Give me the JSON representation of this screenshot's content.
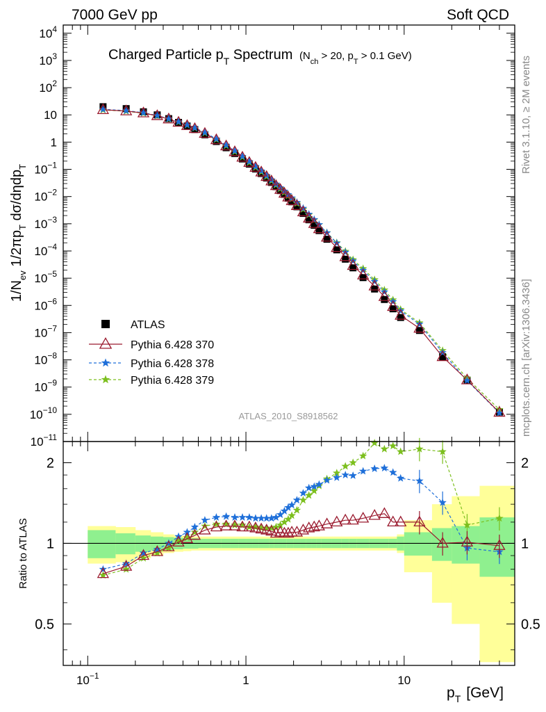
{
  "header": {
    "left": "7000 GeV pp",
    "right": "Soft QCD"
  },
  "side_labels": {
    "rivet": "Rivet 3.1.10, ≥ 2M events",
    "mcplots": "mcplots.cern.ch [arXiv:1306.3436]"
  },
  "chart_data": [
    {
      "type": "scatter",
      "title": "Charged Particle p_T Spectrum",
      "subtitle": "(N_ch > 20, p_T > 0.1 GeV)",
      "ylabel": "1/N_ev 1/2πp_T dσ/dηdp_T",
      "analysis_label": "ATLAS_2010_S8918562",
      "x_scale": "log",
      "y_scale": "log",
      "xlim": [
        0.07,
        50
      ],
      "ylim": [
        1e-11,
        20000
      ],
      "ytick_labels": [
        "10^-11",
        "10^-10",
        "10^-9",
        "10^-8",
        "10^-7",
        "10^-6",
        "10^-5",
        "10^-4",
        "10^-3",
        "10^-2",
        "10^-1",
        "1",
        "10",
        "10^2",
        "10^3",
        "10^4"
      ],
      "legend_position": "lower-left",
      "x": [
        0.125,
        0.175,
        0.225,
        0.275,
        0.325,
        0.375,
        0.425,
        0.475,
        0.55,
        0.65,
        0.75,
        0.85,
        0.95,
        1.05,
        1.15,
        1.25,
        1.35,
        1.45,
        1.55,
        1.65,
        1.75,
        1.85,
        1.95,
        2.1,
        2.3,
        2.5,
        2.7,
        2.9,
        3.25,
        3.75,
        4.25,
        4.75,
        5.5,
        6.5,
        7.5,
        8.5,
        9.5,
        12.5,
        17.5,
        25,
        40
      ],
      "series": [
        {
          "name": "ATLAS",
          "color": "#000000",
          "marker": "square",
          "values": [
            20,
            17,
            13,
            10,
            7.3,
            5.3,
            3.9,
            2.9,
            1.85,
            1.05,
            0.62,
            0.38,
            0.24,
            0.155,
            0.103,
            0.07,
            0.048,
            0.033,
            0.023,
            0.0165,
            0.012,
            0.0087,
            0.0064,
            0.0042,
            0.0024,
            0.0014,
            0.00088,
            0.00056,
            0.00027,
            0.00011,
            5e-05,
            2.4e-05,
            1.05e-05,
            4e-06,
            1.65e-06,
            7.5e-07,
            3.6e-07,
            1.2e-07,
            1.3e-08,
            1.8e-09,
            1.2e-10
          ]
        },
        {
          "name": "Pythia 6.428 370",
          "color": "#9a1a2e",
          "marker": "triangle-open",
          "line": "solid",
          "values": [
            15.4,
            13.9,
            11.7,
            9.3,
            7.0,
            5.3,
            4.0,
            3.1,
            2.07,
            1.21,
            0.72,
            0.44,
            0.276,
            0.178,
            0.117,
            0.079,
            0.054,
            0.037,
            0.025,
            0.0181,
            0.0131,
            0.0095,
            0.007,
            0.0046,
            0.0027,
            0.0016,
            0.00101,
            0.00065,
            0.000318,
            0.000132,
            6.1e-05,
            2.9e-05,
            1.3e-05,
            5.1e-06,
            2.1e-06,
            9e-07,
            4.3e-07,
            1.44e-07,
            1.3e-08,
            1.82e-09,
            1.17e-10
          ]
        },
        {
          "name": "Pythia 6.428 378",
          "color": "#1e6fd9",
          "marker": "star",
          "line": "dashed",
          "values": [
            16,
            14.3,
            12,
            9.5,
            7.2,
            5.6,
            4.3,
            3.35,
            2.25,
            1.31,
            0.78,
            0.475,
            0.3,
            0.194,
            0.128,
            0.087,
            0.0595,
            0.041,
            0.0288,
            0.0211,
            0.0158,
            0.0118,
            0.0089,
            0.0061,
            0.0037,
            0.00225,
            0.00143,
            0.00093,
            0.000464,
            0.000194,
            9e-05,
            4.3e-05,
            1.95e-05,
            7.6e-06,
            3.15e-06,
            1.38e-06,
            6.3e-07,
            2.05e-07,
            1.85e-08,
            1.73e-09,
            1.12e-10
          ]
        },
        {
          "name": "Pythia 6.428 379",
          "color": "#7cbf1e",
          "marker": "star",
          "line": "dashed",
          "values": [
            15.2,
            13.6,
            11.5,
            9.2,
            7.0,
            5.4,
            4.2,
            3.25,
            2.15,
            1.24,
            0.73,
            0.445,
            0.28,
            0.179,
            0.118,
            0.08,
            0.0545,
            0.0377,
            0.0265,
            0.0193,
            0.0143,
            0.0107,
            0.0081,
            0.0056,
            0.0034,
            0.00212,
            0.00138,
            0.00092,
            0.00047,
            0.000201,
            9.7e-05,
            4.8e-05,
            2.25e-05,
            8.8e-06,
            3.7e-06,
            1.6e-06,
            7.1e-07,
            2.3e-07,
            2.2e-08,
            2.1e-09,
            1.5e-10
          ]
        }
      ],
      "legend_labels": [
        "ATLAS",
        "Pythia 6.428 370",
        "Pythia 6.428 378",
        "Pythia 6.428 379"
      ]
    },
    {
      "type": "line",
      "ylabel": "Ratio to ATLAS",
      "xlabel": "p_T [GeV]",
      "x_scale": "log",
      "y_scale": "log",
      "ylim": [
        0.35,
        2.4
      ],
      "ytick_labels": [
        "0.5",
        "1",
        "2"
      ],
      "xtick_labels": [
        "10^-1",
        "1",
        "10"
      ],
      "reference_line": 1,
      "bin_edges": [
        0.1,
        0.15,
        0.2,
        0.25,
        0.3,
        0.35,
        0.4,
        0.45,
        0.5,
        0.6,
        0.7,
        0.8,
        0.9,
        1.0,
        1.1,
        1.2,
        1.3,
        1.4,
        1.5,
        1.6,
        1.7,
        1.8,
        1.9,
        2.0,
        2.2,
        2.4,
        2.6,
        2.8,
        3.0,
        3.5,
        4.0,
        4.5,
        5.0,
        6.0,
        7.0,
        8.0,
        9.0,
        10.0,
        15.0,
        20.0,
        30.0,
        50.0
      ],
      "band_stat_half_width": [
        0.12,
        0.09,
        0.07,
        0.06,
        0.055,
        0.05,
        0.045,
        0.045,
        0.04,
        0.04,
        0.04,
        0.04,
        0.04,
        0.04,
        0.04,
        0.04,
        0.04,
        0.04,
        0.04,
        0.04,
        0.04,
        0.04,
        0.04,
        0.04,
        0.04,
        0.04,
        0.04,
        0.04,
        0.04,
        0.04,
        0.04,
        0.04,
        0.04,
        0.04,
        0.04,
        0.04,
        0.06,
        0.1,
        0.14,
        0.16,
        0.25
      ],
      "band_total_half_width": [
        0.16,
        0.15,
        0.12,
        0.1,
        0.08,
        0.07,
        0.065,
        0.06,
        0.06,
        0.06,
        0.06,
        0.06,
        0.06,
        0.06,
        0.06,
        0.06,
        0.06,
        0.06,
        0.06,
        0.06,
        0.06,
        0.06,
        0.06,
        0.06,
        0.06,
        0.06,
        0.06,
        0.06,
        0.06,
        0.06,
        0.06,
        0.06,
        0.06,
        0.06,
        0.06,
        0.06,
        0.08,
        0.22,
        0.4,
        0.5,
        0.64
      ],
      "series": [
        {
          "name": "Pythia 6.428 370",
          "color": "#9a1a2e",
          "values": [
            0.77,
            0.82,
            0.9,
            0.93,
            0.97,
            1.01,
            1.04,
            1.07,
            1.12,
            1.15,
            1.16,
            1.16,
            1.15,
            1.15,
            1.14,
            1.13,
            1.12,
            1.11,
            1.09,
            1.1,
            1.09,
            1.09,
            1.1,
            1.1,
            1.12,
            1.14,
            1.15,
            1.16,
            1.18,
            1.2,
            1.22,
            1.22,
            1.24,
            1.27,
            1.29,
            1.2,
            1.2,
            1.2,
            1.0,
            1.01,
            0.98
          ]
        },
        {
          "name": "Pythia 6.428 378",
          "color": "#1e6fd9",
          "values": [
            0.8,
            0.84,
            0.92,
            0.95,
            1.0,
            1.06,
            1.1,
            1.15,
            1.22,
            1.25,
            1.26,
            1.25,
            1.25,
            1.25,
            1.24,
            1.24,
            1.24,
            1.24,
            1.25,
            1.28,
            1.32,
            1.36,
            1.39,
            1.45,
            1.54,
            1.61,
            1.63,
            1.66,
            1.72,
            1.76,
            1.8,
            1.79,
            1.86,
            1.9,
            1.91,
            1.84,
            1.75,
            1.71,
            1.42,
            0.96,
            0.93
          ]
        },
        {
          "name": "Pythia 6.428 379",
          "color": "#7cbf1e",
          "values": [
            0.76,
            0.8,
            0.88,
            0.92,
            0.96,
            1.02,
            1.05,
            1.1,
            1.16,
            1.18,
            1.18,
            1.17,
            1.17,
            1.15,
            1.15,
            1.14,
            1.14,
            1.14,
            1.15,
            1.17,
            1.2,
            1.23,
            1.27,
            1.33,
            1.45,
            1.51,
            1.57,
            1.64,
            1.74,
            1.83,
            1.94,
            2.0,
            2.12,
            2.37,
            2.25,
            2.31,
            2.2,
            2.25,
            2.2,
            1.17,
            1.24
          ]
        }
      ]
    }
  ]
}
